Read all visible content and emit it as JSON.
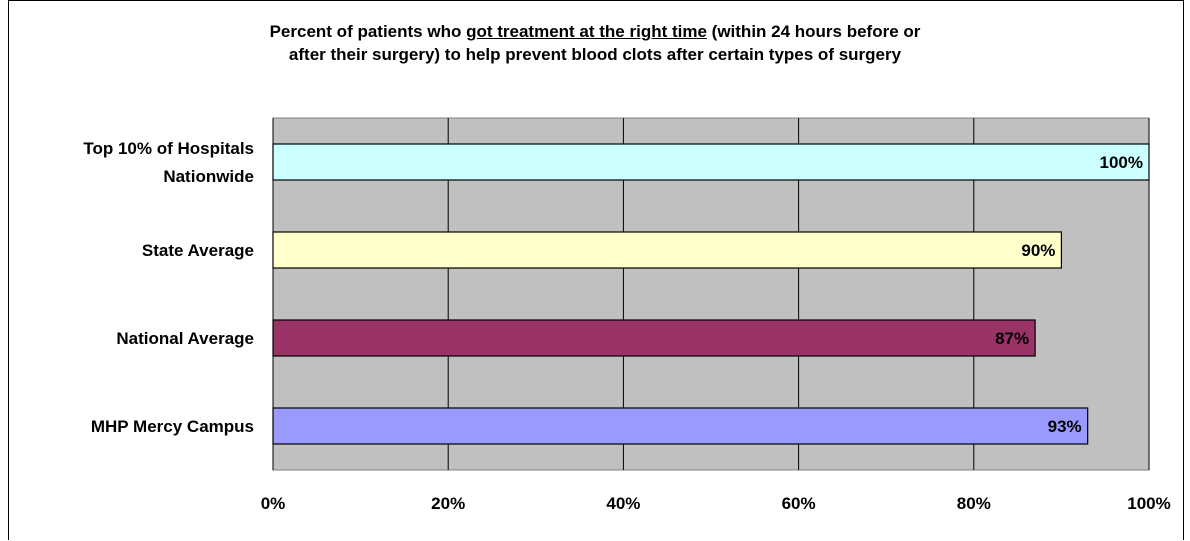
{
  "chart_data": {
    "type": "bar",
    "orientation": "horizontal",
    "title_parts": [
      {
        "text": "Percent of patients who ",
        "underline": false
      },
      {
        "text": "got treatment at the right time",
        "underline": true
      },
      {
        "text": " (within 24 hours before or",
        "underline": false
      },
      {
        "text": "\n",
        "underline": false
      },
      {
        "text": "after their surgery) to help prevent blood clots after certain types of surgery",
        "underline": false
      }
    ],
    "categories": [
      {
        "lines": [
          "Top 10% of Hospitals",
          "Nationwide"
        ],
        "value": 100,
        "label": "100%",
        "color": "#ccffff"
      },
      {
        "lines": [
          "State Average"
        ],
        "value": 90,
        "label": "90%",
        "color": "#ffffcc"
      },
      {
        "lines": [
          "National Average"
        ],
        "value": 87,
        "label": "87%",
        "color": "#993366"
      },
      {
        "lines": [
          "MHP Mercy Campus"
        ],
        "value": 93,
        "label": "93%",
        "color": "#9999ff"
      }
    ],
    "x_ticks": [
      "0%",
      "20%",
      "40%",
      "60%",
      "80%",
      "100%"
    ],
    "xlim": [
      0,
      100
    ],
    "plot_background": "#c0c0c0",
    "gridlines": true,
    "legend": "none"
  }
}
